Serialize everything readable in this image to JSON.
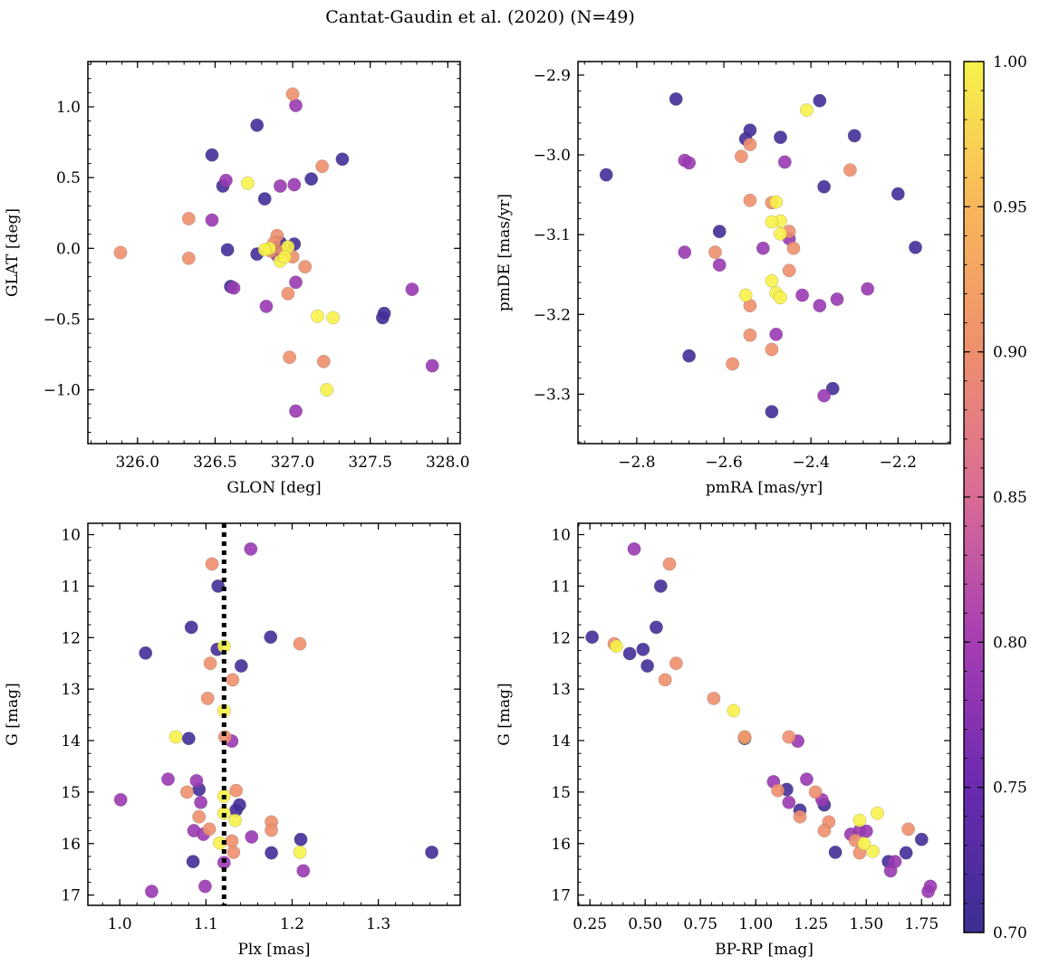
{
  "figure": {
    "title": "Cantat-Gaudin et al. (2020) (N=49)"
  },
  "colorbar": {
    "min": 0.7,
    "max": 1.0,
    "ticks": [
      0.7,
      0.75,
      0.8,
      0.85,
      0.9,
      0.95,
      1.0
    ],
    "tick_labels": [
      "0.70",
      "0.75",
      "0.80",
      "0.85",
      "0.90",
      "0.95",
      "1.00"
    ],
    "colormap": "plasma",
    "stops": [
      "#3b2f92",
      "#6a2ab0",
      "#a63db3",
      "#d86b95",
      "#ee8f6e",
      "#f8b65a",
      "#f7f24a"
    ]
  },
  "chart_data": [
    {
      "type": "scatter",
      "name": "sky-position",
      "xlabel": "GLON [deg]",
      "ylabel": "GLAT [deg]",
      "xlim": [
        325.68,
        328.08
      ],
      "ylim": [
        -1.38,
        1.32
      ],
      "xticks": [
        326.0,
        326.5,
        327.0,
        327.5,
        328.0
      ],
      "xtick_labels": [
        "326.0",
        "326.5",
        "327.0",
        "327.5",
        "328.0"
      ],
      "yticks": [
        -1.0,
        -0.5,
        0.0,
        0.5,
        1.0
      ],
      "ytick_labels": [
        "−1.0",
        "−0.5",
        "0.0",
        "0.5",
        "1.0"
      ],
      "x": [
        327.01,
        326.77,
        326.48,
        326.55,
        327.12,
        327.32,
        326.82,
        326.9,
        326.58,
        326.77,
        326.92,
        326.6,
        327.58,
        327.59,
        327.02,
        327.01,
        326.57,
        326.92,
        326.48,
        326.9,
        327.02,
        326.62,
        326.83,
        327.02,
        327.77,
        327.9,
        327.0,
        326.33,
        325.89,
        326.33,
        326.9,
        327.08,
        326.97,
        327.2,
        326.98,
        327.19,
        326.88,
        326.86,
        327.0,
        326.94,
        326.71,
        326.85,
        326.82,
        326.92,
        327.26,
        327.22,
        327.16,
        326.97,
        326.95
      ],
      "y": [
        0.03,
        0.87,
        0.66,
        0.44,
        0.49,
        0.63,
        0.35,
        -0.02,
        -0.01,
        -0.04,
        0.04,
        -0.27,
        -0.49,
        -0.46,
        1.01,
        0.45,
        0.48,
        0.44,
        0.2,
        -0.05,
        -0.24,
        -0.28,
        -0.41,
        -1.15,
        -0.29,
        -0.83,
        1.09,
        0.21,
        -0.03,
        -0.07,
        0.09,
        -0.13,
        -0.32,
        -0.8,
        -0.77,
        0.58,
        0.04,
        -0.02,
        -0.06,
        -0.02,
        0.46,
        0.0,
        -0.01,
        -0.09,
        -0.49,
        -1.0,
        -0.48,
        0.01,
        -0.06
      ],
      "values": [
        0.71,
        0.71,
        0.71,
        0.71,
        0.71,
        0.71,
        0.71,
        0.71,
        0.71,
        0.71,
        0.71,
        0.71,
        0.71,
        0.71,
        0.79,
        0.79,
        0.79,
        0.79,
        0.79,
        0.79,
        0.79,
        0.79,
        0.79,
        0.79,
        0.79,
        0.79,
        0.9,
        0.9,
        0.9,
        0.9,
        0.9,
        0.9,
        0.9,
        0.9,
        0.9,
        0.9,
        0.9,
        0.9,
        0.9,
        0.9,
        1.0,
        1.0,
        1.0,
        1.0,
        1.0,
        1.0,
        1.0,
        1.0,
        1.0
      ]
    },
    {
      "type": "scatter",
      "name": "proper-motion",
      "xlabel": "pmRA [mas/yr]",
      "ylabel": "pmDE [mas/yr]",
      "xlim": [
        -2.935,
        -2.08
      ],
      "ylim": [
        -3.362,
        -2.883
      ],
      "xticks": [
        -2.8,
        -2.6,
        -2.4,
        -2.2
      ],
      "xtick_labels": [
        "−2.8",
        "−2.6",
        "−2.4",
        "−2.2"
      ],
      "yticks": [
        -3.3,
        -3.2,
        -3.1,
        -3.0,
        -2.9
      ],
      "ytick_labels": [
        "−3.3",
        "−3.2",
        "−3.1",
        "−3.0",
        "−2.9"
      ],
      "x": [
        -2.87,
        -2.71,
        -2.68,
        -2.38,
        -2.54,
        -2.55,
        -2.47,
        -2.3,
        -2.37,
        -2.2,
        -2.16,
        -2.61,
        -2.49,
        -2.35,
        -2.69,
        -2.68,
        -2.46,
        -2.45,
        -2.51,
        -2.61,
        -2.69,
        -2.42,
        -2.34,
        -2.27,
        -2.38,
        -2.48,
        -2.37,
        -2.31,
        -2.56,
        -2.54,
        -2.54,
        -2.45,
        -2.44,
        -2.62,
        -2.45,
        -2.54,
        -2.49,
        -2.54,
        -2.58,
        -2.49,
        -2.41,
        -2.47,
        -2.49,
        -2.47,
        -2.55,
        -2.48,
        -2.47,
        -2.49,
        -2.48
      ],
      "y": [
        -3.025,
        -2.93,
        -3.252,
        -2.932,
        -2.969,
        -2.98,
        -2.978,
        -2.976,
        -3.04,
        -3.049,
        -3.116,
        -3.096,
        -3.322,
        -3.293,
        -3.007,
        -3.01,
        -3.009,
        -3.105,
        -3.117,
        -3.138,
        -3.122,
        -3.176,
        -3.181,
        -3.168,
        -3.189,
        -3.225,
        -3.302,
        -3.019,
        -3.002,
        -2.987,
        -3.057,
        -3.096,
        -3.117,
        -3.122,
        -3.145,
        -3.189,
        -3.244,
        -3.226,
        -3.262,
        -3.06,
        -2.944,
        -3.083,
        -3.158,
        -3.099,
        -3.176,
        -3.173,
        -3.179,
        -3.084,
        -3.059
      ],
      "values": [
        0.71,
        0.71,
        0.71,
        0.71,
        0.71,
        0.71,
        0.71,
        0.71,
        0.71,
        0.71,
        0.71,
        0.71,
        0.71,
        0.71,
        0.79,
        0.79,
        0.79,
        0.79,
        0.79,
        0.79,
        0.79,
        0.79,
        0.79,
        0.79,
        0.79,
        0.79,
        0.79,
        0.9,
        0.9,
        0.9,
        0.9,
        0.9,
        0.9,
        0.9,
        0.9,
        0.9,
        0.9,
        0.9,
        0.9,
        0.9,
        1.0,
        1.0,
        1.0,
        1.0,
        1.0,
        1.0,
        1.0,
        1.0,
        1.0
      ]
    },
    {
      "type": "scatter",
      "name": "parallax-magnitude",
      "xlabel": "Plx [mas]",
      "ylabel": "G [mag]",
      "xlim": [
        0.963,
        1.395
      ],
      "ylim": [
        17.2,
        9.78
      ],
      "invert_y": true,
      "xticks": [
        1.0,
        1.1,
        1.2,
        1.3
      ],
      "xtick_labels": [
        "1.0",
        "1.1",
        "1.2",
        "1.3"
      ],
      "yticks": [
        10,
        11,
        12,
        13,
        14,
        15,
        16,
        17
      ],
      "ytick_labels": [
        "10",
        "11",
        "12",
        "13",
        "14",
        "15",
        "16",
        "17"
      ],
      "vline": {
        "x": 1.121,
        "style": "dotted"
      },
      "x": [
        1.114,
        1.083,
        1.03,
        1.113,
        1.175,
        1.141,
        1.08,
        1.092,
        1.139,
        1.135,
        1.085,
        1.21,
        1.176,
        1.362,
        1.152,
        1.13,
        1.056,
        1.089,
        1.094,
        1.086,
        1.001,
        1.097,
        1.153,
        1.213,
        1.099,
        1.037,
        1.107,
        1.209,
        1.105,
        1.131,
        1.102,
        1.135,
        1.078,
        1.092,
        1.176,
        1.176,
        1.104,
        1.13,
        1.132,
        1.122,
        1.065,
        1.121,
        1.121,
        1.134,
        1.121,
        1.116,
        1.209,
        1.121,
        1.121
      ],
      "y": [
        11.0,
        11.8,
        12.3,
        12.23,
        11.99,
        12.55,
        13.96,
        14.95,
        15.25,
        15.35,
        16.35,
        15.92,
        16.18,
        16.17,
        10.28,
        14.01,
        14.75,
        14.78,
        15.2,
        15.75,
        15.15,
        15.82,
        15.87,
        16.53,
        16.83,
        16.93,
        10.57,
        12.12,
        12.5,
        12.82,
        13.18,
        14.97,
        15.0,
        15.48,
        15.58,
        15.74,
        15.72,
        15.95,
        16.17,
        13.93,
        13.93,
        12.17,
        13.42,
        15.55,
        15.41,
        15.99,
        16.17,
        15.08,
        16.37
      ],
      "values": [
        0.71,
        0.71,
        0.71,
        0.71,
        0.71,
        0.71,
        0.71,
        0.71,
        0.71,
        0.71,
        0.71,
        0.71,
        0.71,
        0.71,
        0.79,
        0.79,
        0.79,
        0.79,
        0.79,
        0.79,
        0.79,
        0.79,
        0.79,
        0.79,
        0.79,
        0.79,
        0.9,
        0.9,
        0.9,
        0.9,
        0.9,
        0.9,
        0.9,
        0.9,
        0.9,
        0.9,
        0.9,
        0.9,
        0.9,
        0.9,
        1.0,
        1.0,
        1.0,
        1.0,
        1.0,
        1.0,
        1.0,
        1.0,
        0.79
      ]
    },
    {
      "type": "scatter",
      "name": "color-magnitude",
      "xlabel": "BP-RP [mag]",
      "ylabel": "G [mag]",
      "xlim": [
        0.196,
        1.88
      ],
      "ylim": [
        17.2,
        9.78
      ],
      "invert_y": true,
      "xticks": [
        0.25,
        0.5,
        0.75,
        1.0,
        1.25,
        1.5,
        1.75
      ],
      "xtick_labels": [
        "0.25",
        "0.50",
        "0.75",
        "1.00",
        "1.25",
        "1.50",
        "1.75"
      ],
      "yticks": [
        10,
        11,
        12,
        13,
        14,
        15,
        16,
        17
      ],
      "ytick_labels": [
        "10",
        "11",
        "12",
        "13",
        "14",
        "15",
        "16",
        "17"
      ],
      "x": [
        0.26,
        0.43,
        0.49,
        0.51,
        0.55,
        0.57,
        0.95,
        1.14,
        1.2,
        1.31,
        1.36,
        1.6,
        1.68,
        1.75,
        0.45,
        1.08,
        1.15,
        1.19,
        1.23,
        1.3,
        1.43,
        1.47,
        1.5,
        1.61,
        1.78,
        1.79,
        0.61,
        0.36,
        0.64,
        0.59,
        0.81,
        1.15,
        1.1,
        1.2,
        1.27,
        1.33,
        1.45,
        1.47,
        1.69,
        0.95,
        0.9,
        0.37,
        1.47,
        1.53,
        1.55,
        1.49,
        0.95,
        1.31,
        1.63
      ],
      "y": [
        11.99,
        12.31,
        12.23,
        12.55,
        11.8,
        11.0,
        13.96,
        14.95,
        15.35,
        15.25,
        16.17,
        16.35,
        16.18,
        15.92,
        10.28,
        14.8,
        15.2,
        14.01,
        14.75,
        15.15,
        15.82,
        15.75,
        15.76,
        16.53,
        16.93,
        16.83,
        10.57,
        12.12,
        12.5,
        12.82,
        13.18,
        13.93,
        14.97,
        15.48,
        15.0,
        15.58,
        15.94,
        16.18,
        15.72,
        13.94,
        13.42,
        12.17,
        15.55,
        16.15,
        15.41,
        16.0,
        13.93,
        15.75,
        16.35
      ],
      "values": [
        0.71,
        0.71,
        0.71,
        0.71,
        0.71,
        0.71,
        0.71,
        0.71,
        0.71,
        0.71,
        0.71,
        0.71,
        0.71,
        0.71,
        0.79,
        0.79,
        0.79,
        0.79,
        0.79,
        0.79,
        0.79,
        0.79,
        0.79,
        0.79,
        0.79,
        0.79,
        0.9,
        0.9,
        0.9,
        0.9,
        0.9,
        0.9,
        0.9,
        0.9,
        0.9,
        0.9,
        0.9,
        0.9,
        0.9,
        1.0,
        1.0,
        1.0,
        1.0,
        1.0,
        1.0,
        1.0,
        0.9,
        0.9,
        0.79
      ]
    }
  ]
}
